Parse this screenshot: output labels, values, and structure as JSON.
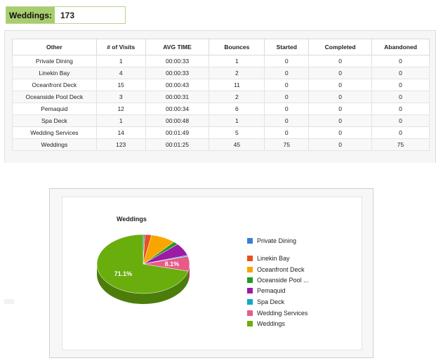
{
  "summary": {
    "label": "Weddings:",
    "value": "173"
  },
  "table": {
    "headers": [
      "Other",
      "# of Visits",
      "AVG TIME",
      "Bounces",
      "Started",
      "Completed",
      "Abandoned"
    ],
    "rows": [
      [
        "Private Dining",
        "1",
        "00:00:33",
        "1",
        "0",
        "0",
        "0"
      ],
      [
        "Linekin Bay",
        "4",
        "00:00:33",
        "2",
        "0",
        "0",
        "0"
      ],
      [
        "Oceanfront Deck",
        "15",
        "00:00:43",
        "11",
        "0",
        "0",
        "0"
      ],
      [
        "Oceanside Pool Deck",
        "3",
        "00:00:31",
        "2",
        "0",
        "0",
        "0"
      ],
      [
        "Pemaquid",
        "12",
        "00:00:34",
        "6",
        "0",
        "0",
        "0"
      ],
      [
        "Spa Deck",
        "1",
        "00:00:48",
        "1",
        "0",
        "0",
        "0"
      ],
      [
        "Wedding Services",
        "14",
        "00:01:49",
        "5",
        "0",
        "0",
        "0"
      ],
      [
        "Weddings",
        "123",
        "00:01:25",
        "45",
        "75",
        "0",
        "75"
      ]
    ]
  },
  "chart_data": {
    "type": "pie",
    "title": "Weddings",
    "labels": [
      "Private Dining",
      "Linekin Bay",
      "Oceanfront Deck",
      "Oceanside Pool Deck",
      "Pemaquid",
      "Spa Deck",
      "Wedding Services",
      "Weddings"
    ],
    "legend_labels": [
      "Private Dining",
      "Linekin Bay",
      "Oceanfront Deck",
      "Oceanside Pool ...",
      "Pemaquid",
      "Spa Deck",
      "Wedding Services",
      "Weddings"
    ],
    "values": [
      1,
      4,
      15,
      3,
      12,
      1,
      14,
      123
    ],
    "colors": [
      "#3b7dd8",
      "#e8501c",
      "#f9a500",
      "#229a22",
      "#9c1aa6",
      "#11a8c7",
      "#e85a87",
      "#6aae0e"
    ],
    "data_labels": [
      {
        "index": 6,
        "text": "8.1%"
      },
      {
        "index": 7,
        "text": "71.1%"
      }
    ],
    "legend_position": "right"
  }
}
